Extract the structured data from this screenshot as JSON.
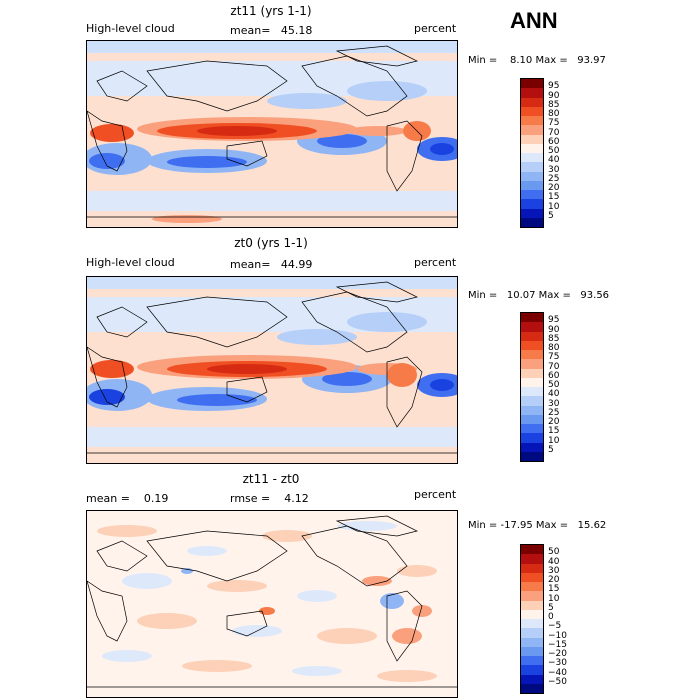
{
  "season": "ANN",
  "panels": [
    {
      "title": "zt11 (yrs 1-1)",
      "left_label": "High-level cloud",
      "center_label": "mean=   45.18",
      "right_label": "percent",
      "minmax": "Min =    8.10 Max =   93.97",
      "colorbar": {
        "labels": [
          "95",
          "90",
          "85",
          "80",
          "75",
          "70",
          "60",
          "50",
          "40",
          "30",
          "25",
          "20",
          "15",
          "10",
          "5"
        ],
        "colors": [
          "#7a0000",
          "#b40f0f",
          "#d62a12",
          "#ef4f22",
          "#f77a49",
          "#faa07c",
          "#fdd0b8",
          "#fff3ec",
          "#dde9fb",
          "#b5cff8",
          "#8fb5f5",
          "#6a99f0",
          "#3f6ff0",
          "#1a42e0",
          "#0615b8",
          "#000a80"
        ]
      }
    },
    {
      "title": "zt0 (yrs 1-1)",
      "left_label": "High-level cloud",
      "center_label": "mean=   44.99",
      "right_label": "percent",
      "minmax": "Min =   10.07 Max =   93.56",
      "colorbar": {
        "labels": [
          "95",
          "90",
          "85",
          "80",
          "75",
          "70",
          "60",
          "50",
          "40",
          "30",
          "25",
          "20",
          "15",
          "10",
          "5"
        ],
        "colors": [
          "#7a0000",
          "#b40f0f",
          "#d62a12",
          "#ef4f22",
          "#f77a49",
          "#faa07c",
          "#fdd0b8",
          "#fff3ec",
          "#dde9fb",
          "#b5cff8",
          "#8fb5f5",
          "#6a99f0",
          "#3f6ff0",
          "#1a42e0",
          "#0615b8",
          "#000a80"
        ]
      }
    },
    {
      "title": "zt11 - zt0",
      "left_label": "mean =    0.19",
      "center_label": "rmse =    4.12",
      "right_label": "percent",
      "minmax": "Min = -17.95 Max =   15.62",
      "colorbar": {
        "labels": [
          "50",
          "40",
          "30",
          "20",
          "15",
          "10",
          "5",
          "0",
          "−5",
          "−10",
          "−15",
          "−20",
          "−30",
          "−40",
          "−50"
        ],
        "colors": [
          "#7a0000",
          "#b40f0f",
          "#d62a12",
          "#ef4f22",
          "#f77a49",
          "#faa07c",
          "#fdd0b8",
          "#fff3ec",
          "#dde9fb",
          "#b5cff8",
          "#8fb5f5",
          "#6a99f0",
          "#3f6ff0",
          "#1a42e0",
          "#0615b8",
          "#000a80"
        ]
      }
    }
  ]
}
